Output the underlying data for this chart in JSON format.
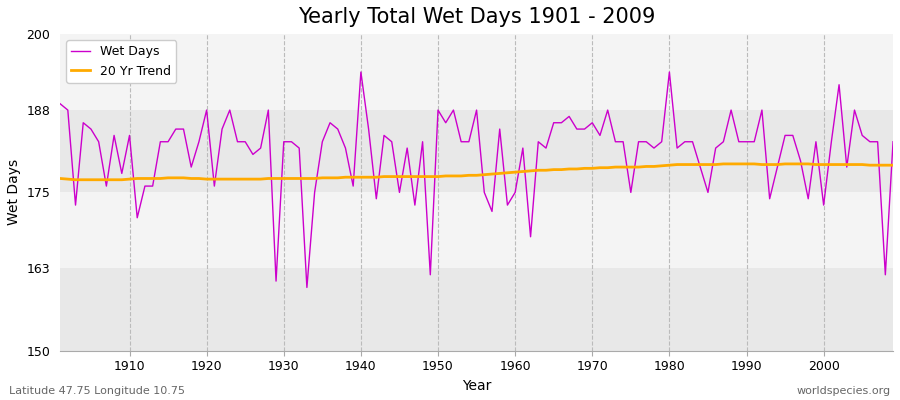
{
  "title": "Yearly Total Wet Days 1901 - 2009",
  "xlabel": "Year",
  "ylabel": "Wet Days",
  "lat_lon_label": "Latitude 47.75 Longitude 10.75",
  "watermark": "worldspecies.org",
  "ylim": [
    150,
    200
  ],
  "yticks": [
    150,
    163,
    175,
    188,
    200
  ],
  "xlim": [
    1901,
    2009
  ],
  "xticks": [
    1910,
    1920,
    1930,
    1940,
    1950,
    1960,
    1970,
    1980,
    1990,
    2000
  ],
  "line_color": "#cc00cc",
  "trend_color": "#ffaa00",
  "fig_bg_color": "#ffffff",
  "plot_bg_color": "#ffffff",
  "band_colors": [
    "#e8e8e8",
    "#f4f4f4"
  ],
  "years": [
    1901,
    1902,
    1903,
    1904,
    1905,
    1906,
    1907,
    1908,
    1909,
    1910,
    1911,
    1912,
    1913,
    1914,
    1915,
    1916,
    1917,
    1918,
    1919,
    1920,
    1921,
    1922,
    1923,
    1924,
    1925,
    1926,
    1927,
    1928,
    1929,
    1930,
    1931,
    1932,
    1933,
    1934,
    1935,
    1936,
    1937,
    1938,
    1939,
    1940,
    1941,
    1942,
    1943,
    1944,
    1945,
    1946,
    1947,
    1948,
    1949,
    1950,
    1951,
    1952,
    1953,
    1954,
    1955,
    1956,
    1957,
    1958,
    1959,
    1960,
    1961,
    1962,
    1963,
    1964,
    1965,
    1966,
    1967,
    1968,
    1969,
    1970,
    1971,
    1972,
    1973,
    1974,
    1975,
    1976,
    1977,
    1978,
    1979,
    1980,
    1981,
    1982,
    1983,
    1984,
    1985,
    1986,
    1987,
    1988,
    1989,
    1990,
    1991,
    1992,
    1993,
    1994,
    1995,
    1996,
    1997,
    1998,
    1999,
    2000,
    2001,
    2002,
    2003,
    2004,
    2005,
    2006,
    2007,
    2008,
    2009
  ],
  "wet_days": [
    189,
    188,
    173,
    186,
    185,
    183,
    176,
    184,
    178,
    184,
    171,
    176,
    176,
    183,
    183,
    185,
    185,
    179,
    183,
    188,
    176,
    185,
    188,
    183,
    183,
    181,
    182,
    188,
    161,
    183,
    183,
    182,
    160,
    175,
    183,
    186,
    185,
    182,
    176,
    194,
    185,
    174,
    184,
    183,
    175,
    182,
    173,
    183,
    162,
    188,
    186,
    188,
    183,
    183,
    188,
    175,
    172,
    185,
    173,
    175,
    182,
    168,
    183,
    182,
    186,
    186,
    187,
    185,
    185,
    186,
    184,
    188,
    183,
    183,
    175,
    183,
    183,
    182,
    183,
    194,
    182,
    183,
    183,
    179,
    175,
    182,
    183,
    188,
    183,
    183,
    183,
    188,
    174,
    179,
    184,
    184,
    180,
    174,
    183,
    173,
    183,
    192,
    179,
    188,
    184,
    183,
    183,
    162,
    183
  ],
  "trend_years": [
    1901,
    1902,
    1903,
    1904,
    1905,
    1906,
    1907,
    1908,
    1909,
    1910,
    1911,
    1912,
    1913,
    1914,
    1915,
    1916,
    1917,
    1918,
    1919,
    1920,
    1921,
    1922,
    1923,
    1924,
    1925,
    1926,
    1927,
    1928,
    1929,
    1930,
    1931,
    1932,
    1933,
    1934,
    1935,
    1936,
    1937,
    1938,
    1939,
    1940,
    1941,
    1942,
    1943,
    1944,
    1945,
    1946,
    1947,
    1948,
    1949,
    1950,
    1951,
    1952,
    1953,
    1954,
    1955,
    1956,
    1957,
    1958,
    1959,
    1960,
    1961,
    1962,
    1963,
    1964,
    1965,
    1966,
    1967,
    1968,
    1969,
    1970,
    1971,
    1972,
    1973,
    1974,
    1975,
    1976,
    1977,
    1978,
    1979,
    1980,
    1981,
    1982,
    1983,
    1984,
    1985,
    1986,
    1987,
    1988,
    1989,
    1990,
    1991,
    1992,
    1993,
    1994,
    1995,
    1996,
    1997,
    1998,
    1999,
    2000,
    2001,
    2002,
    2003,
    2004,
    2005,
    2006,
    2007,
    2008,
    2009
  ],
  "trend_values": [
    177.2,
    177.1,
    177.0,
    177.0,
    177.0,
    177.0,
    177.0,
    177.0,
    177.0,
    177.1,
    177.2,
    177.2,
    177.2,
    177.2,
    177.3,
    177.3,
    177.3,
    177.2,
    177.2,
    177.1,
    177.1,
    177.1,
    177.1,
    177.1,
    177.1,
    177.1,
    177.1,
    177.2,
    177.2,
    177.2,
    177.2,
    177.2,
    177.2,
    177.2,
    177.3,
    177.3,
    177.3,
    177.4,
    177.4,
    177.4,
    177.4,
    177.4,
    177.5,
    177.5,
    177.5,
    177.5,
    177.5,
    177.5,
    177.5,
    177.5,
    177.6,
    177.6,
    177.6,
    177.7,
    177.7,
    177.8,
    177.9,
    178.0,
    178.1,
    178.2,
    178.3,
    178.4,
    178.5,
    178.5,
    178.6,
    178.6,
    178.7,
    178.7,
    178.8,
    178.8,
    178.9,
    178.9,
    179.0,
    179.0,
    179.0,
    179.0,
    179.1,
    179.1,
    179.2,
    179.3,
    179.4,
    179.4,
    179.4,
    179.4,
    179.4,
    179.4,
    179.5,
    179.5,
    179.5,
    179.5,
    179.5,
    179.4,
    179.4,
    179.4,
    179.5,
    179.5,
    179.5,
    179.5,
    179.4,
    179.4,
    179.4,
    179.4,
    179.4,
    179.4,
    179.4,
    179.3,
    179.3,
    179.3,
    179.3
  ]
}
